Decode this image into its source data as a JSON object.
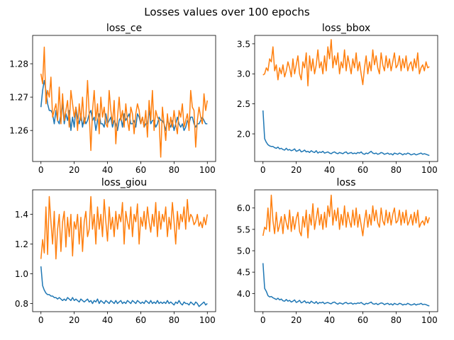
{
  "figure": {
    "suptitle": "Losses values over 100 epochs"
  },
  "colors": {
    "series_1": "#1f77b4",
    "series_2": "#ff7f0e",
    "axes": "#000000",
    "background": "#ffffff"
  },
  "chart_data": [
    {
      "type": "line",
      "title": "loss_ce",
      "xlim": [
        -5,
        105
      ],
      "ylim": [
        1.2507,
        1.2885
      ],
      "x_ticks": [
        0,
        20,
        40,
        60,
        80,
        100
      ],
      "y_ticks": [
        1.26,
        1.27,
        1.28
      ],
      "y_tick_labels": [
        "1.26",
        "1.27",
        "1.28"
      ],
      "grid": false,
      "series": [
        {
          "color": "#1f77b4",
          "values": [
            1.267,
            1.272,
            1.275,
            1.272,
            1.268,
            1.266,
            1.266,
            1.265,
            1.262,
            1.266,
            1.263,
            1.262,
            1.265,
            1.268,
            1.262,
            1.265,
            1.263,
            1.266,
            1.26,
            1.264,
            1.261,
            1.267,
            1.264,
            1.262,
            1.265,
            1.261,
            1.264,
            1.262,
            1.263,
            1.265,
            1.266,
            1.263,
            1.264,
            1.26,
            1.263,
            1.265,
            1.262,
            1.262,
            1.261,
            1.265,
            1.262,
            1.263,
            1.264,
            1.261,
            1.263,
            1.262,
            1.26,
            1.263,
            1.264,
            1.261,
            1.265,
            1.263,
            1.264,
            1.265,
            1.262,
            1.262,
            1.263,
            1.261,
            1.265,
            1.264,
            1.262,
            1.264,
            1.261,
            1.262,
            1.262,
            1.266,
            1.262,
            1.263,
            1.263,
            1.261,
            1.262,
            1.264,
            1.263,
            1.263,
            1.262,
            1.26,
            1.263,
            1.262,
            1.261,
            1.263,
            1.26,
            1.262,
            1.264,
            1.262,
            1.261,
            1.262,
            1.26,
            1.261,
            1.263,
            1.262,
            1.264,
            1.264,
            1.262,
            1.261,
            1.262,
            1.262,
            1.263,
            1.264,
            1.263,
            1.262,
            1.262
          ]
        },
        {
          "color": "#ff7f0e",
          "values": [
            1.277,
            1.274,
            1.285,
            1.268,
            1.272,
            1.27,
            1.276,
            1.264,
            1.266,
            1.268,
            1.263,
            1.273,
            1.262,
            1.271,
            1.263,
            1.266,
            1.269,
            1.261,
            1.272,
            1.268,
            1.264,
            1.267,
            1.26,
            1.268,
            1.263,
            1.27,
            1.262,
            1.264,
            1.275,
            1.265,
            1.254,
            1.266,
            1.272,
            1.263,
            1.268,
            1.259,
            1.27,
            1.264,
            1.267,
            1.262,
            1.261,
            1.272,
            1.266,
            1.262,
            1.269,
            1.256,
            1.264,
            1.27,
            1.263,
            1.266,
            1.261,
            1.268,
            1.263,
            1.26,
            1.267,
            1.265,
            1.259,
            1.265,
            1.268,
            1.266,
            1.262,
            1.264,
            1.261,
            1.266,
            1.258,
            1.269,
            1.263,
            1.272,
            1.26,
            1.266,
            1.264,
            1.263,
            1.252,
            1.267,
            1.262,
            1.257,
            1.265,
            1.26,
            1.264,
            1.261,
            1.266,
            1.262,
            1.259,
            1.266,
            1.264,
            1.268,
            1.261,
            1.263,
            1.265,
            1.26,
            1.272,
            1.267,
            1.266,
            1.255,
            1.263,
            1.267,
            1.264,
            1.262,
            1.271,
            1.266,
            1.269
          ]
        }
      ]
    },
    {
      "type": "line",
      "title": "loss_bbox",
      "xlim": [
        -5,
        105
      ],
      "ylim": [
        1.54,
        3.64
      ],
      "x_ticks": [
        0,
        20,
        40,
        60,
        80,
        100
      ],
      "y_ticks": [
        2.0,
        2.5,
        3.0,
        3.5
      ],
      "y_tick_labels": [
        "2.0",
        "2.5",
        "3.0",
        "3.5"
      ],
      "grid": false,
      "series": [
        {
          "color": "#1f77b4",
          "values": [
            2.39,
            1.92,
            1.86,
            1.82,
            1.8,
            1.79,
            1.79,
            1.77,
            1.76,
            1.78,
            1.75,
            1.76,
            1.74,
            1.73,
            1.76,
            1.73,
            1.74,
            1.72,
            1.73,
            1.75,
            1.71,
            1.72,
            1.74,
            1.7,
            1.71,
            1.73,
            1.7,
            1.71,
            1.69,
            1.72,
            1.7,
            1.69,
            1.72,
            1.68,
            1.7,
            1.69,
            1.71,
            1.68,
            1.69,
            1.7,
            1.68,
            1.67,
            1.69,
            1.7,
            1.68,
            1.67,
            1.69,
            1.68,
            1.67,
            1.69,
            1.7,
            1.67,
            1.68,
            1.69,
            1.67,
            1.68,
            1.67,
            1.69,
            1.68,
            1.7,
            1.67,
            1.66,
            1.68,
            1.67,
            1.69,
            1.71,
            1.68,
            1.67,
            1.68,
            1.66,
            1.67,
            1.69,
            1.68,
            1.66,
            1.67,
            1.68,
            1.66,
            1.67,
            1.65,
            1.68,
            1.67,
            1.66,
            1.68,
            1.67,
            1.65,
            1.67,
            1.66,
            1.68,
            1.67,
            1.65,
            1.66,
            1.67,
            1.65,
            1.66,
            1.67,
            1.68,
            1.66,
            1.67,
            1.66,
            1.65,
            1.64
          ]
        },
        {
          "color": "#ff7f0e",
          "values": [
            2.98,
            3.0,
            3.1,
            3.05,
            3.25,
            3.2,
            3.45,
            3.05,
            3.15,
            2.9,
            3.1,
            3.0,
            3.15,
            2.95,
            3.05,
            3.2,
            3.1,
            2.95,
            3.25,
            3.0,
            3.15,
            3.3,
            3.0,
            2.9,
            3.2,
            3.1,
            3.35,
            2.8,
            3.3,
            3.05,
            3.25,
            3.0,
            3.15,
            3.4,
            3.1,
            3.2,
            3.0,
            3.3,
            3.05,
            3.45,
            3.25,
            3.57,
            3.1,
            3.3,
            3.15,
            3.35,
            3.0,
            3.2,
            3.1,
            3.4,
            3.05,
            3.3,
            3.15,
            3.0,
            3.25,
            3.1,
            3.35,
            3.05,
            3.2,
            3.0,
            2.82,
            3.1,
            3.3,
            3.0,
            3.2,
            3.05,
            3.4,
            3.15,
            3.3,
            3.1,
            3.0,
            3.35,
            3.15,
            3.05,
            3.3,
            3.1,
            3.25,
            3.05,
            3.2,
            3.35,
            3.1,
            3.15,
            3.3,
            3.05,
            3.25,
            3.1,
            3.3,
            3.05,
            3.15,
            3.2,
            3.05,
            3.25,
            3.1,
            3.35,
            3.0,
            3.1,
            3.15,
            3.05,
            3.2,
            3.1,
            3.12
          ]
        }
      ]
    },
    {
      "type": "line",
      "title": "loss_giou",
      "xlim": [
        -5,
        105
      ],
      "ylim": [
        0.745,
        1.565
      ],
      "x_ticks": [
        0,
        20,
        40,
        60,
        80,
        100
      ],
      "y_ticks": [
        0.8,
        1.0,
        1.2,
        1.4
      ],
      "y_tick_labels": [
        "0.8",
        "1.0",
        "1.2",
        "1.4"
      ],
      "grid": false,
      "series": [
        {
          "color": "#1f77b4",
          "values": [
            1.05,
            0.92,
            0.89,
            0.87,
            0.86,
            0.86,
            0.85,
            0.85,
            0.84,
            0.84,
            0.83,
            0.84,
            0.83,
            0.82,
            0.83,
            0.82,
            0.84,
            0.83,
            0.82,
            0.84,
            0.82,
            0.83,
            0.82,
            0.81,
            0.83,
            0.82,
            0.81,
            0.82,
            0.83,
            0.81,
            0.82,
            0.8,
            0.82,
            0.81,
            0.83,
            0.8,
            0.82,
            0.81,
            0.8,
            0.82,
            0.81,
            0.8,
            0.82,
            0.81,
            0.8,
            0.82,
            0.8,
            0.81,
            0.82,
            0.8,
            0.81,
            0.8,
            0.82,
            0.81,
            0.8,
            0.82,
            0.81,
            0.8,
            0.82,
            0.81,
            0.8,
            0.81,
            0.8,
            0.82,
            0.81,
            0.8,
            0.82,
            0.8,
            0.81,
            0.8,
            0.82,
            0.8,
            0.81,
            0.8,
            0.81,
            0.8,
            0.82,
            0.8,
            0.81,
            0.8,
            0.79,
            0.81,
            0.8,
            0.82,
            0.8,
            0.79,
            0.81,
            0.8,
            0.8,
            0.79,
            0.81,
            0.8,
            0.79,
            0.81,
            0.8,
            0.78,
            0.79,
            0.8,
            0.81,
            0.79,
            0.8
          ]
        },
        {
          "color": "#ff7f0e",
          "values": [
            1.1,
            1.23,
            1.14,
            1.45,
            1.13,
            1.52,
            1.35,
            1.2,
            1.42,
            1.1,
            1.3,
            1.4,
            1.15,
            1.35,
            1.42,
            1.18,
            1.38,
            1.25,
            1.4,
            1.12,
            1.35,
            1.3,
            1.4,
            1.2,
            1.38,
            1.15,
            1.35,
            1.42,
            1.25,
            1.3,
            1.52,
            1.3,
            1.4,
            1.2,
            1.45,
            1.3,
            1.4,
            1.25,
            1.5,
            1.35,
            1.22,
            1.45,
            1.3,
            1.38,
            1.25,
            1.42,
            1.3,
            1.4,
            1.35,
            1.48,
            1.2,
            1.42,
            1.35,
            1.3,
            1.45,
            1.25,
            1.4,
            1.35,
            1.47,
            1.2,
            1.38,
            1.32,
            1.42,
            1.3,
            1.45,
            1.35,
            1.28,
            1.4,
            1.32,
            1.48,
            1.25,
            1.42,
            1.3,
            1.4,
            1.35,
            1.45,
            1.25,
            1.38,
            1.3,
            1.48,
            1.35,
            1.2,
            1.42,
            1.3,
            1.4,
            1.35,
            1.45,
            1.3,
            1.5,
            1.35,
            1.4,
            1.38,
            1.33,
            1.35,
            1.4,
            1.32,
            1.35,
            1.31,
            1.38,
            1.33,
            1.4
          ]
        }
      ]
    },
    {
      "type": "line",
      "title": "loss",
      "xlim": [
        -5,
        105
      ],
      "ylim": [
        3.575,
        6.425
      ],
      "x_ticks": [
        0,
        20,
        40,
        60,
        80,
        100
      ],
      "y_ticks": [
        4.0,
        4.5,
        5.0,
        5.5,
        6.0
      ],
      "y_tick_labels": [
        "4.0",
        "4.5",
        "5.0",
        "5.5",
        "6.0"
      ],
      "grid": false,
      "series": [
        {
          "color": "#1f77b4",
          "values": [
            4.71,
            4.12,
            4.05,
            3.95,
            3.92,
            3.93,
            3.9,
            3.88,
            3.86,
            3.89,
            3.85,
            3.87,
            3.83,
            3.82,
            3.86,
            3.82,
            3.84,
            3.8,
            3.82,
            3.85,
            3.79,
            3.81,
            3.84,
            3.78,
            3.8,
            3.83,
            3.78,
            3.8,
            3.77,
            3.82,
            3.79,
            3.77,
            3.81,
            3.76,
            3.79,
            3.78,
            3.8,
            3.76,
            3.78,
            3.79,
            3.77,
            3.76,
            3.79,
            3.8,
            3.77,
            3.75,
            3.78,
            3.77,
            3.75,
            3.78,
            3.79,
            3.76,
            3.77,
            3.78,
            3.75,
            3.77,
            3.76,
            3.78,
            3.77,
            3.79,
            3.76,
            3.74,
            3.77,
            3.76,
            3.78,
            3.8,
            3.76,
            3.75,
            3.77,
            3.74,
            3.76,
            3.78,
            3.77,
            3.74,
            3.76,
            3.77,
            3.74,
            3.76,
            3.73,
            3.77,
            3.75,
            3.74,
            3.77,
            3.76,
            3.73,
            3.75,
            3.74,
            3.77,
            3.75,
            3.73,
            3.74,
            3.76,
            3.73,
            3.75,
            3.75,
            3.77,
            3.74,
            3.75,
            3.74,
            3.72,
            3.71
          ]
        },
        {
          "color": "#ff7f0e",
          "values": [
            5.35,
            5.55,
            5.5,
            6.0,
            5.45,
            6.3,
            5.7,
            5.4,
            5.9,
            5.45,
            5.6,
            5.8,
            5.4,
            5.85,
            5.65,
            5.5,
            5.95,
            5.45,
            5.8,
            5.5,
            5.75,
            5.9,
            5.45,
            5.35,
            5.8,
            5.55,
            5.95,
            5.3,
            5.85,
            5.6,
            6.1,
            5.5,
            5.75,
            6.0,
            5.6,
            5.85,
            5.5,
            5.9,
            5.55,
            6.05,
            5.8,
            6.3,
            5.6,
            5.95,
            5.7,
            6.0,
            5.5,
            5.85,
            5.6,
            6.05,
            5.55,
            5.9,
            5.7,
            5.55,
            5.95,
            5.6,
            6.0,
            5.55,
            5.85,
            5.6,
            5.35,
            5.7,
            5.95,
            5.55,
            5.85,
            5.6,
            6.05,
            5.7,
            5.95,
            5.65,
            5.55,
            6.0,
            5.7,
            5.6,
            5.95,
            5.65,
            5.9,
            5.6,
            5.85,
            6.0,
            5.65,
            5.7,
            5.95,
            5.6,
            5.9,
            5.65,
            5.95,
            5.6,
            5.7,
            5.85,
            5.6,
            5.9,
            5.65,
            5.95,
            5.55,
            5.65,
            5.7,
            5.6,
            5.8,
            5.65,
            5.78
          ]
        }
      ]
    }
  ]
}
